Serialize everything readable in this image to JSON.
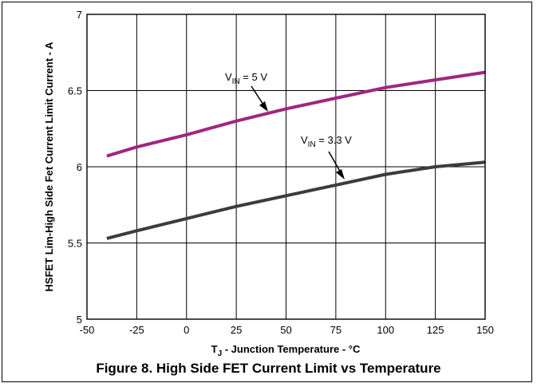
{
  "caption": "Figure 8. High Side FET Current Limit vs Temperature",
  "chart_data": {
    "type": "line",
    "xlabel_main": "T",
    "xlabel_sub": "J",
    "xlabel_rest": " - Junction Temperature - °C",
    "ylabel": "HSFET Lim-High Side Fet Current Limit Current - A",
    "xlim": [
      -50,
      150
    ],
    "ylim": [
      5,
      7
    ],
    "xticks": [
      -50,
      -25,
      0,
      25,
      50,
      75,
      100,
      125,
      150
    ],
    "xtick_labels": [
      "-50",
      "-25",
      "0",
      "25",
      "50",
      "75",
      "100",
      "125",
      "150"
    ],
    "yticks": [
      5,
      5.5,
      6,
      6.5,
      7
    ],
    "ytick_labels": [
      "5",
      "5.5",
      "6",
      "6.5",
      "7"
    ],
    "grid": true,
    "series": [
      {
        "color": "#a0267f",
        "label_main": "V",
        "label_sub": "IN",
        "label_rest": " = 5 V",
        "x": [
          -40,
          -25,
          0,
          25,
          50,
          75,
          100,
          125,
          150
        ],
        "y": [
          6.07,
          6.13,
          6.21,
          6.3,
          6.38,
          6.45,
          6.52,
          6.57,
          6.62
        ]
      },
      {
        "color": "#3a3d3a",
        "label_main": "V",
        "label_sub": "IN",
        "label_rest": " = 3.3 V",
        "x": [
          -40,
          -25,
          0,
          25,
          50,
          75,
          100,
          125,
          150
        ],
        "y": [
          5.53,
          5.58,
          5.66,
          5.74,
          5.81,
          5.88,
          5.95,
          6.0,
          6.03
        ]
      }
    ]
  }
}
